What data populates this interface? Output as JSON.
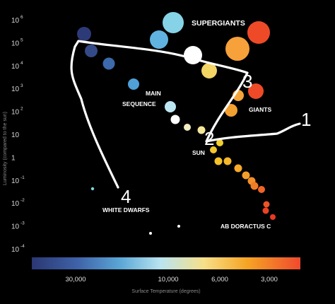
{
  "y_axis": {
    "title": "Luminosity (compared to the sun)",
    "ticks": [
      {
        "base": "10",
        "exp": "6"
      },
      {
        "base": "10",
        "exp": "5"
      },
      {
        "base": "10",
        "exp": "4"
      },
      {
        "base": "10",
        "exp": "3"
      },
      {
        "base": "10",
        "exp": "2"
      },
      {
        "base": "10",
        "exp": ""
      },
      {
        "base": "1",
        "exp": ""
      },
      {
        "base": "10",
        "exp": "-1"
      },
      {
        "base": "10",
        "exp": "-2"
      },
      {
        "base": "10",
        "exp": "-3"
      },
      {
        "base": "10",
        "exp": "-4"
      }
    ]
  },
  "x_axis": {
    "title": "Surface Temperature (degrees)",
    "ticks": [
      "30,000",
      "10,000",
      "6,000",
      "3,000"
    ]
  },
  "region_labels": {
    "supergiants": "SUPERGIANTS",
    "main_sequence_line1": "MAIN",
    "main_sequence_line2": "SEQUENCE",
    "giants": "GIANTS",
    "sun": "SUN",
    "white_dwarfs": "WHITE DWARFS",
    "ab_doractus": "AB DORACTUS C"
  },
  "stage_numbers": [
    "1",
    "2",
    "3",
    "4"
  ],
  "colors": {
    "background": "#000000",
    "path": "#ffffff",
    "colorbar_stops": [
      "#2b3773",
      "#3f62a8",
      "#5ba7d6",
      "#b9e4f0",
      "#f6e08a",
      "#f6a524",
      "#ef4a2e"
    ]
  },
  "stars": [
    {
      "name": "star-supergiant-lightblue",
      "color": "#86d3e8"
    },
    {
      "name": "star-supergiant-bluish",
      "color": "#60b3e0"
    },
    {
      "name": "star-supergiant-white",
      "color": "#ffffff"
    },
    {
      "name": "star-supergiant-orange",
      "color": "#f6a13a"
    },
    {
      "name": "star-supergiant-red",
      "color": "#ee4a28"
    },
    {
      "name": "star-blue-1",
      "color": "#2d3a78"
    },
    {
      "name": "star-blue-2",
      "color": "#344a88"
    },
    {
      "name": "star-blue-3",
      "color": "#3c6aaa"
    },
    {
      "name": "star-blue-4",
      "color": "#4fa0d6"
    },
    {
      "name": "star-ms-lightblue",
      "color": "#bce6f2"
    },
    {
      "name": "star-ms-white",
      "color": "#ffffff"
    },
    {
      "name": "star-ms-cream-1",
      "color": "#f2ecc0"
    },
    {
      "name": "star-ms-cream-2",
      "color": "#f5e79a"
    },
    {
      "name": "star-sun",
      "color": "#f3d565"
    },
    {
      "name": "star-yellow-giant",
      "color": "#f5d33a"
    },
    {
      "name": "star-giant-orange-1",
      "color": "#f5a43a"
    },
    {
      "name": "star-giant-red",
      "color": "#ee4a28"
    },
    {
      "name": "star-giant-orange-2",
      "color": "#f2a030"
    },
    {
      "name": "star-dwarf-1",
      "color": "#f4cf2e"
    },
    {
      "name": "star-dwarf-2",
      "color": "#f4c82c"
    },
    {
      "name": "star-dwarf-3",
      "color": "#f4c22a"
    },
    {
      "name": "star-dwarf-4",
      "color": "#f4b82a"
    },
    {
      "name": "star-dwarf-5",
      "color": "#f5aa2a"
    },
    {
      "name": "star-dwarf-6",
      "color": "#f49e2a"
    },
    {
      "name": "star-dwarf-7",
      "color": "#f28f28"
    },
    {
      "name": "star-dwarf-8",
      "color": "#f07c26"
    },
    {
      "name": "star-dwarf-9",
      "color": "#ef6526"
    },
    {
      "name": "star-dwarf-10",
      "color": "#ee5326"
    },
    {
      "name": "star-dwarf-11",
      "color": "#ec4324"
    },
    {
      "name": "star-white-dwarf-blue",
      "color": "#7fd5e0"
    },
    {
      "name": "star-white-dwarf-1",
      "color": "#ffffff"
    },
    {
      "name": "star-white-dwarf-2",
      "color": "#ffffff"
    },
    {
      "name": "star-ab-doractus",
      "color": "#e83a22"
    }
  ]
}
